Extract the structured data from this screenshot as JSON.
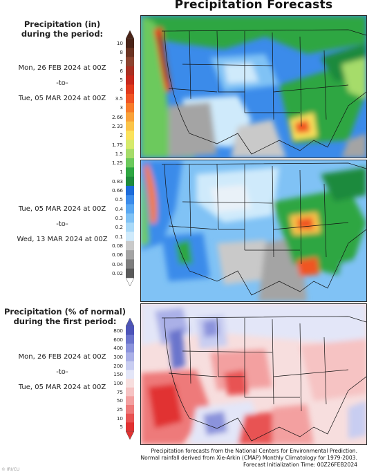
{
  "title": "Precipitation Forecasts",
  "precip_legend": {
    "title_line1": "Precipitation (in)",
    "title_line2": "during the period:",
    "ticks": [
      "10",
      "8",
      "7",
      "6",
      "5",
      "4",
      "3.5",
      "3",
      "2.66",
      "2.33",
      "2",
      "1.75",
      "1.5",
      "1.25",
      "1",
      "0.83",
      "0.66",
      "0.5",
      "0.4",
      "0.3",
      "0.2",
      "0.1",
      "0.08",
      "0.06",
      "0.04",
      "0.02"
    ],
    "colors": [
      "#4a2418",
      "#6b3322",
      "#8c4430",
      "#a83022",
      "#c6281c",
      "#e0391c",
      "#f05424",
      "#f77c2a",
      "#f9a23a",
      "#fbc449",
      "#fbe25c",
      "#d6ea6c",
      "#a6dc6a",
      "#6cc95d",
      "#2ea642",
      "#1f8a3c",
      "#1c6bd9",
      "#3b8bea",
      "#5aa8f2",
      "#80c2f5",
      "#a9d9f8",
      "#cfeafb",
      "#c9c9c9",
      "#a4a4a4",
      "#7e7e7e",
      "#5a5a5a"
    ]
  },
  "pct_legend": {
    "title_line1": "Precipitation (% of normal)",
    "title_line2": "during the first period:",
    "ticks": [
      "800",
      "600",
      "400",
      "300",
      "200",
      "150",
      "100",
      "75",
      "50",
      "25",
      "10",
      "5"
    ],
    "colors": [
      "#4d54b8",
      "#6b74cc",
      "#8b93dc",
      "#aab0e7",
      "#c8cdf1",
      "#e3e6f8",
      "#f7dede",
      "#f6c3c3",
      "#f3a0a0",
      "#ee7a7a",
      "#e85252",
      "#e13131"
    ]
  },
  "periods": [
    {
      "start": "Mon, 26 FEB 2024 at 00Z",
      "sep": "-to-",
      "end": "Tue, 05 MAR 2024 at 00Z"
    },
    {
      "start": "Tue, 05 MAR 2024 at 00Z",
      "sep": "-to-",
      "end": "Wed, 13 MAR 2024 at 00Z"
    },
    {
      "start": "Mon, 26 FEB 2024 at 00Z",
      "sep": "-to-",
      "end": "Tue, 05 MAR 2024 at 00Z"
    }
  ],
  "credits": {
    "line1": "Precipitation forecasts from the National Centers for Environmental Prediction.",
    "line2": "Normal rainfall derived from Xie-Arkin (CMAP) Monthly Climatology for 1979-2003.",
    "line3": "Forecast Initialization Time: 00Z26FEB2024"
  },
  "corner_mark": "© IRI/CU"
}
